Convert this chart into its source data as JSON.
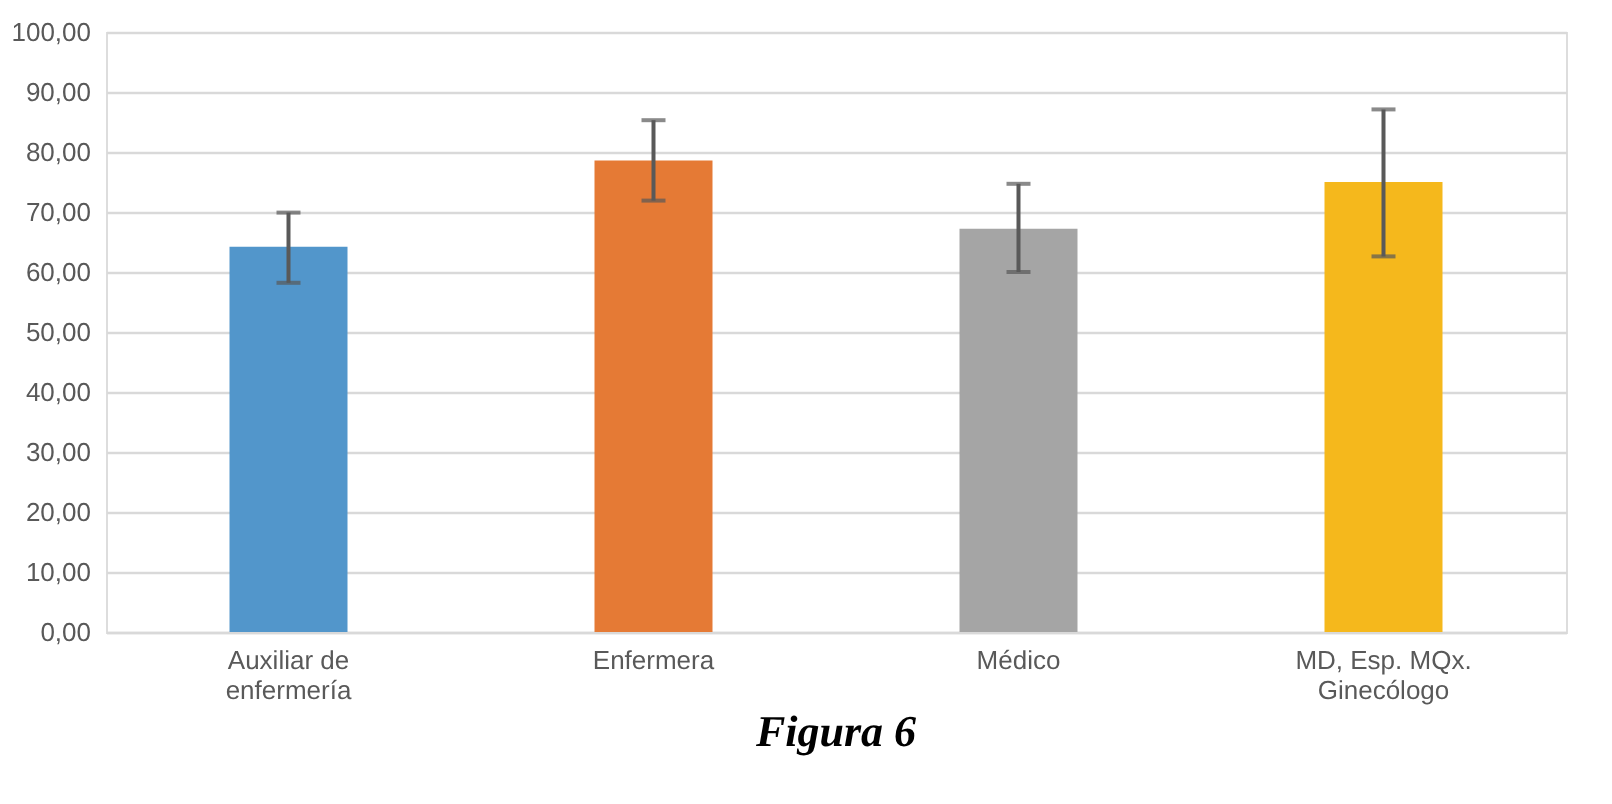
{
  "chart_data": {
    "type": "bar",
    "title": "Figura 6",
    "categories": [
      "Auxiliar de enfermería",
      "Enfermera",
      "Médico",
      "MD, Esp. MQx. Ginecólogo"
    ],
    "values": [
      64.2,
      78.6,
      67.2,
      75.0
    ],
    "colors": [
      "#5296cb",
      "#e57a35",
      "#a5a5a5",
      "#f5b81c"
    ],
    "errors": [
      [
        58.2,
        69.9
      ],
      [
        71.9,
        85.3
      ],
      [
        60.0,
        74.7
      ],
      [
        62.6,
        87.1
      ]
    ],
    "ylim": [
      0,
      100
    ],
    "yticks": [
      {
        "value": 0,
        "label": "0,00"
      },
      {
        "value": 10,
        "label": "10,00"
      },
      {
        "value": 20,
        "label": "20,00"
      },
      {
        "value": 30,
        "label": "30,00"
      },
      {
        "value": 40,
        "label": "40,00"
      },
      {
        "value": 50,
        "label": "50,00"
      },
      {
        "value": 60,
        "label": "60,00"
      },
      {
        "value": 70,
        "label": "70,00"
      },
      {
        "value": 80,
        "label": "80,00"
      },
      {
        "value": 90,
        "label": "90,00"
      },
      {
        "value": 100,
        "label": "100,00"
      }
    ],
    "grid": "y"
  }
}
